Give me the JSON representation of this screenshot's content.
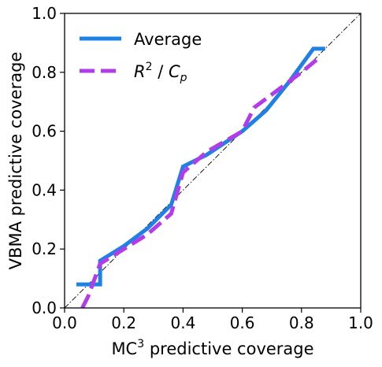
{
  "chart_data": {
    "type": "line",
    "title": "",
    "xlabel": "MC",
    "xlabel_sup": "3",
    "xlabel_rest": " predictive coverage",
    "ylabel": "VBMA predictive coverage",
    "xlim": [
      0.0,
      1.0
    ],
    "ylim": [
      0.0,
      1.0
    ],
    "xticks": [
      "0.0",
      "0.2",
      "0.4",
      "0.6",
      "0.8",
      "1.0"
    ],
    "yticks": [
      "0.0",
      "0.2",
      "0.4",
      "0.6",
      "0.8",
      "1.0"
    ],
    "grid": false,
    "legend_position": "top-left",
    "reference_line": {
      "x": [
        0,
        1
      ],
      "y": [
        0,
        1
      ],
      "style": "dash-dot",
      "color": "#000000"
    },
    "series": [
      {
        "name": "Average",
        "color": "#1f80e6",
        "style": "solid",
        "x": [
          0.04,
          0.12,
          0.12,
          0.2,
          0.28,
          0.36,
          0.4,
          0.48,
          0.6,
          0.68,
          0.76,
          0.84,
          0.88
        ],
        "y": [
          0.08,
          0.08,
          0.16,
          0.21,
          0.27,
          0.35,
          0.48,
          0.52,
          0.6,
          0.67,
          0.77,
          0.88,
          0.88
        ]
      },
      {
        "name": "R² / Cp",
        "color": "#b23bea",
        "style": "dashed",
        "x": [
          0.06,
          0.08,
          0.12,
          0.2,
          0.28,
          0.36,
          0.4,
          0.48,
          0.6,
          0.64,
          0.72,
          0.8,
          0.86
        ],
        "y": [
          0.0,
          0.04,
          0.15,
          0.2,
          0.25,
          0.32,
          0.46,
          0.53,
          0.6,
          0.68,
          0.74,
          0.8,
          0.85
        ]
      }
    ],
    "legend": {
      "average_label": "Average",
      "r2cp_R": "R",
      "r2cp_sup": "2",
      "r2cp_sep": " / ",
      "r2cp_C": "C",
      "r2cp_sub": "p"
    }
  }
}
